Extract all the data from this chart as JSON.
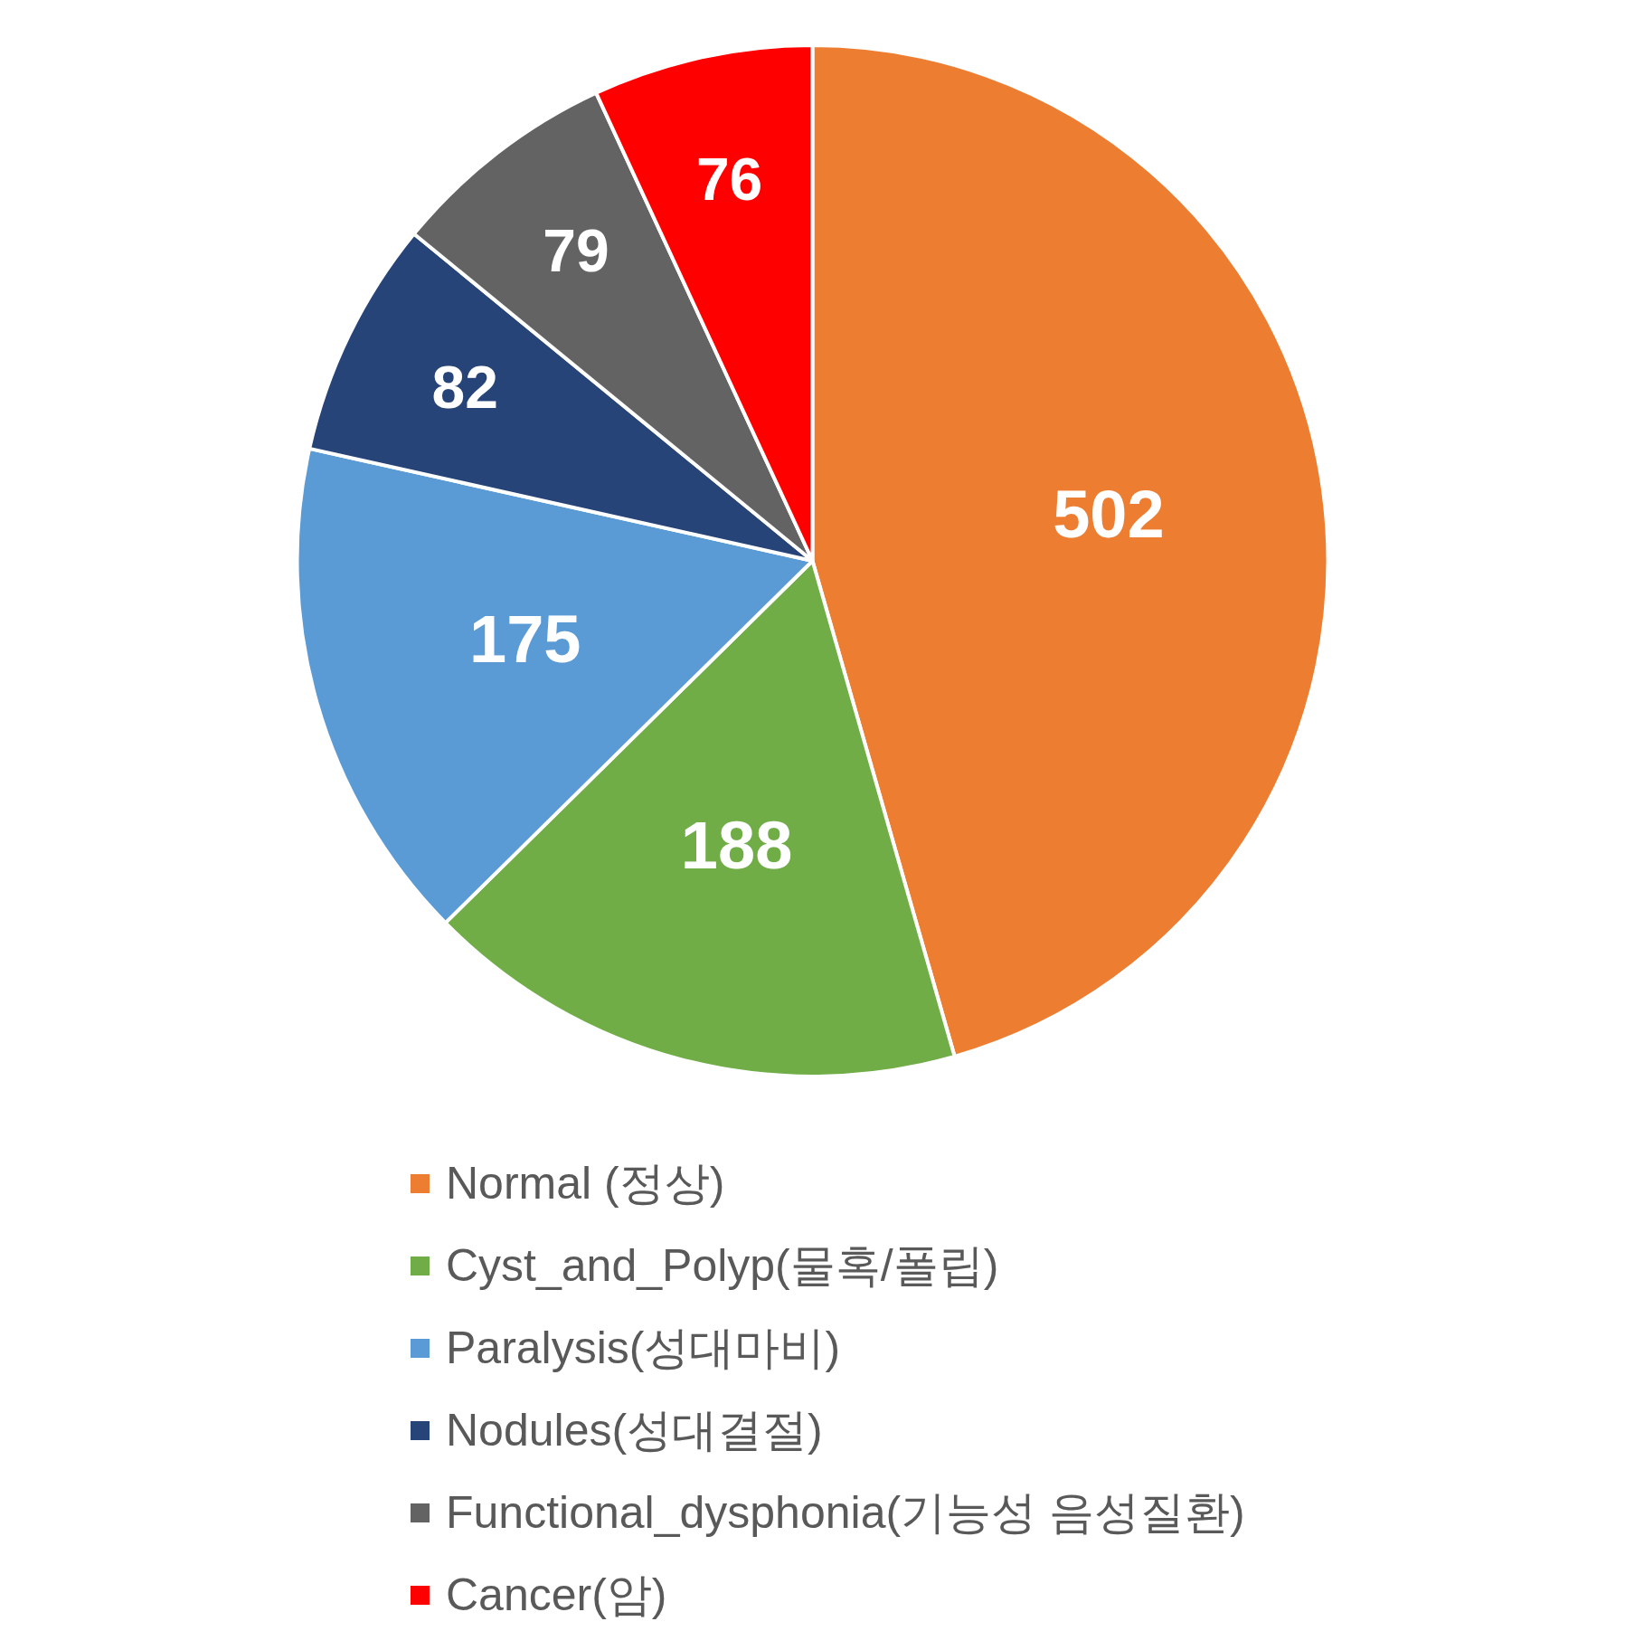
{
  "chart_data": {
    "type": "pie",
    "categories": [
      "Normal (정상)",
      "Cyst_and_Polyp(물혹/폴립)",
      "Paralysis(성대마비)",
      "Nodules(성대결절)",
      "Functional_dysphonia(기능성 음성질환)",
      "Cancer(암)"
    ],
    "values": [
      502,
      188,
      175,
      82,
      79,
      76
    ],
    "colors": [
      "#ed7d31",
      "#70ad47",
      "#5b9bd5",
      "#264478",
      "#636363",
      "#ff0000"
    ],
    "data_labels": true,
    "legend": "bottom"
  }
}
